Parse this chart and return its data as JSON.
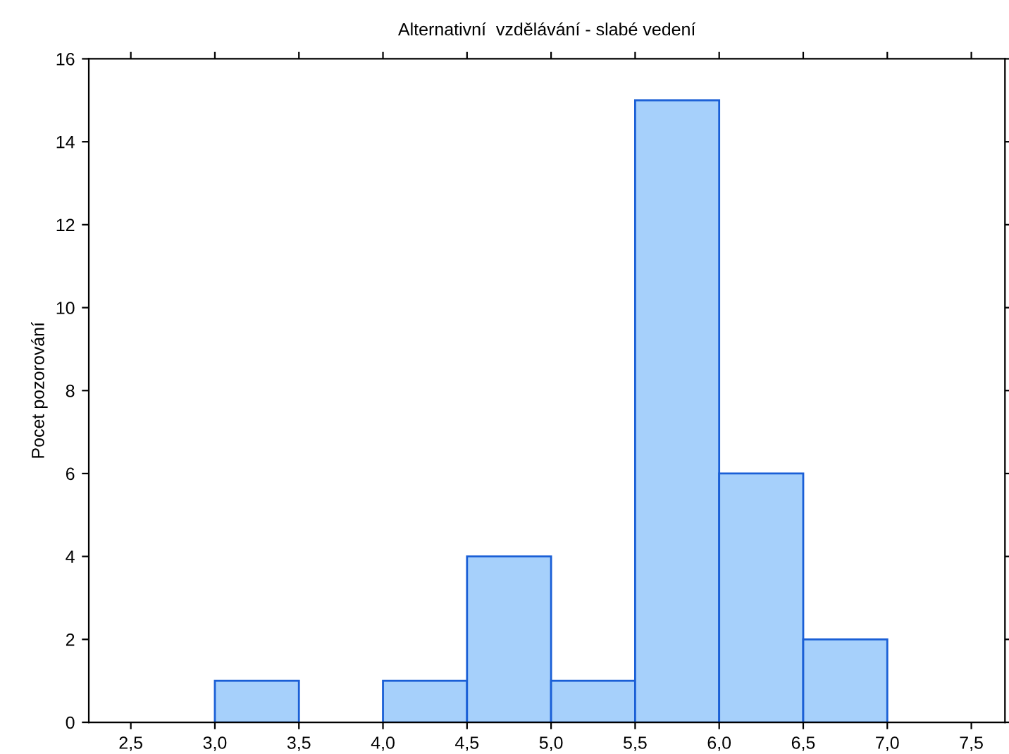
{
  "chart_data": {
    "type": "histogram",
    "title": "Alternativní  vzdělávání - slabé vedení",
    "ylabel": "Pocet pozorování",
    "bins": [
      2.5,
      3.0,
      3.5,
      4.0,
      4.5,
      5.0,
      5.5,
      6.0,
      6.5,
      7.0,
      7.5
    ],
    "values": [
      0,
      1,
      0,
      1,
      4,
      1,
      15,
      6,
      2,
      0
    ],
    "color": "#a6d0fb",
    "xlim": [
      2.25,
      7.7
    ],
    "xticks": [
      {
        "value": 2.5,
        "label": "2,5"
      },
      {
        "value": 3.0,
        "label": "3,0"
      },
      {
        "value": 3.5,
        "label": "3,5"
      },
      {
        "value": 4.0,
        "label": "4,0"
      },
      {
        "value": 4.5,
        "label": "4,5"
      },
      {
        "value": 5.0,
        "label": "5,0"
      },
      {
        "value": 5.5,
        "label": "5,5"
      },
      {
        "value": 6.0,
        "label": "6,0"
      },
      {
        "value": 6.5,
        "label": "6,5"
      },
      {
        "value": 7.0,
        "label": "7,0"
      },
      {
        "value": 7.5,
        "label": "7,5"
      }
    ],
    "ylim": [
      0,
      16
    ],
    "yticks": [
      0,
      2,
      4,
      6,
      8,
      10,
      12,
      14,
      16
    ],
    "grid": false
  }
}
